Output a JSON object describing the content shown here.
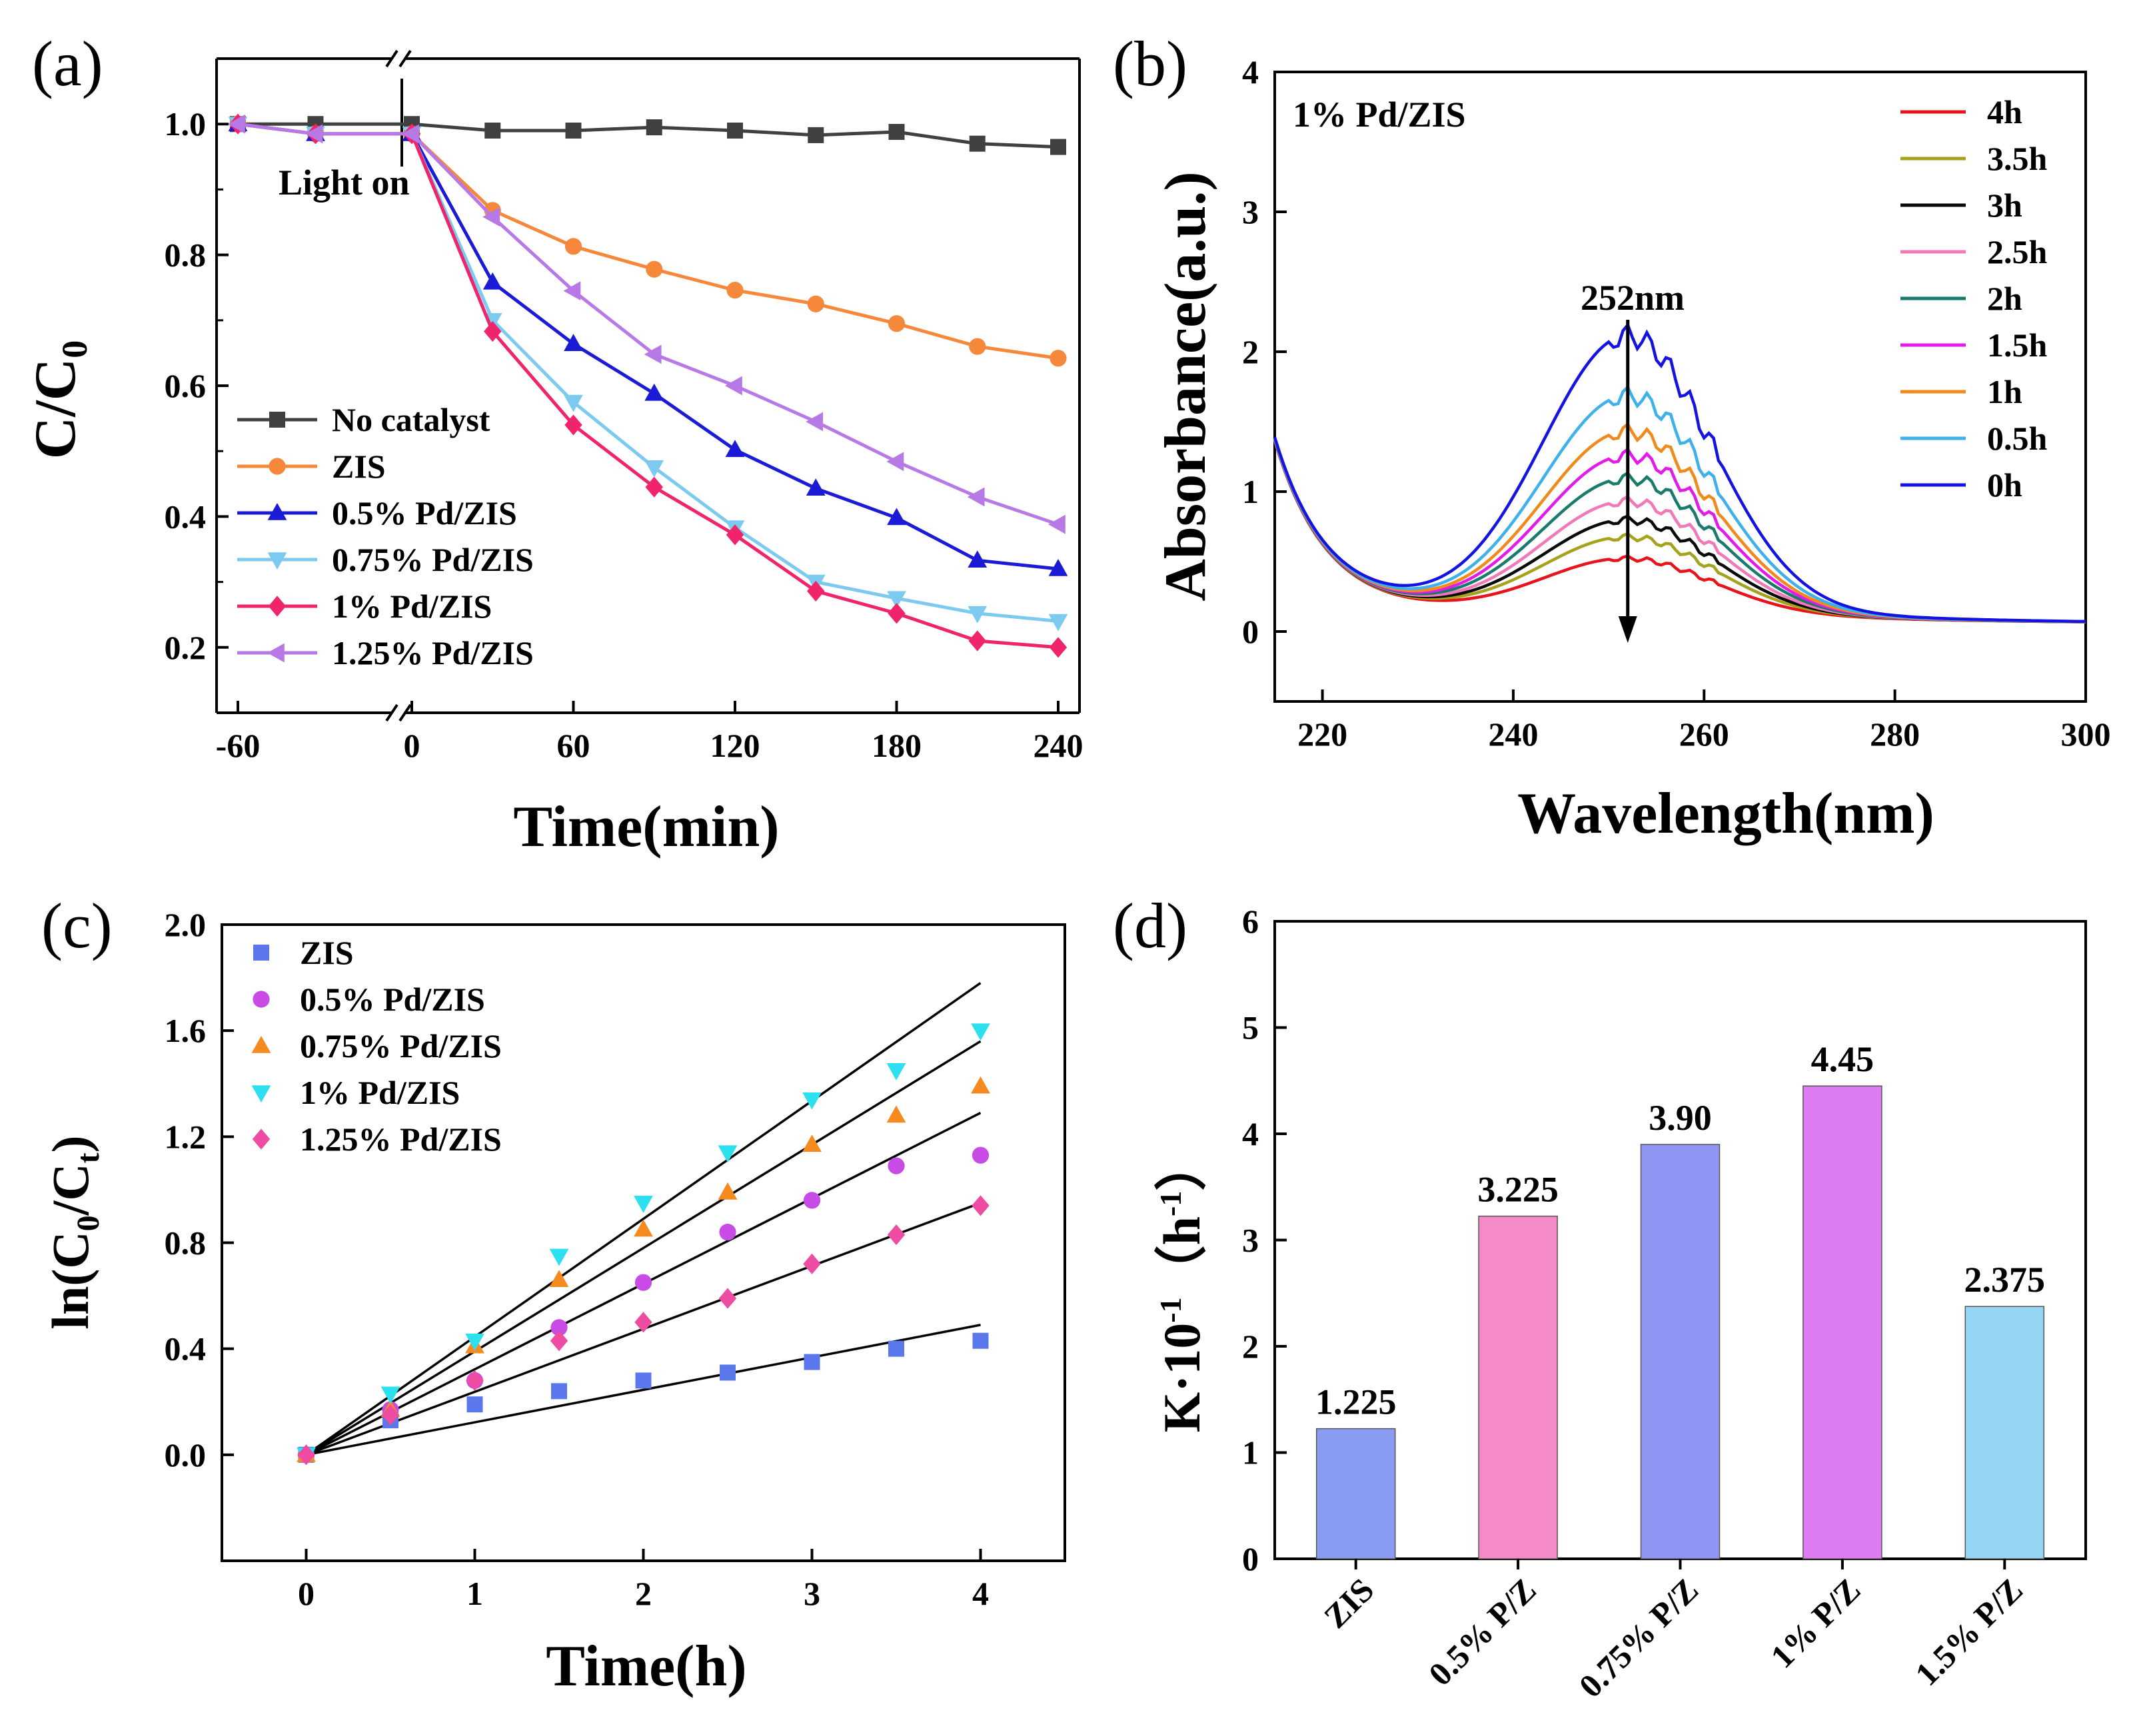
{
  "chart_data": [
    {
      "panel": "(a)",
      "type": "line",
      "xlabel": "Time(min)",
      "ylabel": "C/C₀",
      "ylabel_main": "C/C",
      "ylabel_sub": "0",
      "xlim": [
        -60,
        240
      ],
      "ylim": [
        0.1,
        1.1
      ],
      "xticks": [
        "-60",
        "0",
        "60",
        "120",
        "180",
        "240"
      ],
      "yticks": [
        "0.2",
        "0.4",
        "0.6",
        "0.8",
        "1.0"
      ],
      "annotation": "Light on",
      "legend_position": "lower-left",
      "x": [
        -60,
        -30,
        0,
        30,
        60,
        90,
        120,
        150,
        180,
        210,
        240
      ],
      "series": [
        {
          "name": "No catalyst",
          "color": "#404040",
          "marker": "square",
          "values": [
            1.0,
            1.0,
            1.0,
            0.99,
            0.99,
            0.995,
            0.99,
            0.983,
            0.988,
            0.97,
            0.965
          ]
        },
        {
          "name": "ZIS",
          "color": "#f5883a",
          "marker": "circle",
          "values": [
            1.0,
            0.985,
            0.985,
            0.868,
            0.813,
            0.778,
            0.746,
            0.725,
            0.695,
            0.66,
            0.642
          ]
        },
        {
          "name": "0.5% Pd/ZIS",
          "color": "#1b1bd6",
          "marker": "triangle-up",
          "values": [
            1.0,
            0.985,
            0.985,
            0.758,
            0.664,
            0.588,
            0.502,
            0.443,
            0.398,
            0.333,
            0.32
          ]
        },
        {
          "name": "0.75% Pd/ZIS",
          "color": "#7ccaf0",
          "marker": "triangle-down",
          "values": [
            1.0,
            0.985,
            0.985,
            0.7,
            0.575,
            0.475,
            0.383,
            0.3,
            0.275,
            0.252,
            0.24
          ]
        },
        {
          "name": "1% Pd/ZIS",
          "color": "#f0246a",
          "marker": "diamond",
          "values": [
            1.0,
            0.985,
            0.985,
            0.683,
            0.54,
            0.445,
            0.372,
            0.286,
            0.252,
            0.21,
            0.2
          ]
        },
        {
          "name": "1.25% Pd/ZIS",
          "color": "#b779e6",
          "marker": "triangle-left",
          "values": [
            1.0,
            0.985,
            0.985,
            0.858,
            0.745,
            0.648,
            0.6,
            0.545,
            0.484,
            0.43,
            0.388
          ]
        }
      ]
    },
    {
      "panel": "(b)",
      "type": "line",
      "title": "1% Pd/ZIS",
      "xlabel": "Wavelength(nm)",
      "ylabel": "Absorbance(a.u.)",
      "xlim": [
        215,
        300
      ],
      "ylim": [
        -0.5,
        4
      ],
      "xticks": [
        "220",
        "240",
        "260",
        "280",
        "300"
      ],
      "yticks": [
        "0",
        "1",
        "2",
        "3",
        "4"
      ],
      "annotation": "252nm",
      "peak_nm": 252,
      "legend_position": "top-right",
      "series": [
        {
          "name": "4h",
          "color": "#e8141c",
          "peak": 0.44
        },
        {
          "name": "3.5h",
          "color": "#a5a21c",
          "peak": 0.59
        },
        {
          "name": "3h",
          "color": "#0a0a0a",
          "peak": 0.71
        },
        {
          "name": "2.5h",
          "color": "#f07ab8",
          "peak": 0.84
        },
        {
          "name": "2h",
          "color": "#1a7a6c",
          "peak": 1.0
        },
        {
          "name": "1.5h",
          "color": "#e31ae8",
          "peak": 1.16
        },
        {
          "name": "1h",
          "color": "#f08a1c",
          "peak": 1.33
        },
        {
          "name": "0.5h",
          "color": "#3eb0ea",
          "peak": 1.58
        },
        {
          "name": "0h",
          "color": "#1414e0",
          "peak": 2.0
        }
      ]
    },
    {
      "panel": "(c)",
      "type": "scatter",
      "xlabel": "Time(h)",
      "ylabel": "ln(C₀/Cₜ)",
      "ylabel_parts": [
        "ln(C",
        "0",
        "/C",
        "t",
        ")"
      ],
      "xlim": [
        -0.5,
        4.5
      ],
      "ylim": [
        -0.4,
        2.0
      ],
      "xticks": [
        "0",
        "1",
        "2",
        "3",
        "4"
      ],
      "yticks": [
        "0.0",
        "0.4",
        "0.8",
        "1.2",
        "1.6",
        "2.0"
      ],
      "legend_position": "top-left",
      "x": [
        0,
        0.5,
        1,
        1.5,
        2,
        2.5,
        3,
        3.5,
        4
      ],
      "series": [
        {
          "name": "ZIS",
          "color": "#5a78ec",
          "marker": "square",
          "slope": 0.1225,
          "values": [
            0,
            0.13,
            0.19,
            0.24,
            0.28,
            0.31,
            0.35,
            0.4,
            0.43
          ]
        },
        {
          "name": "0.5% Pd/ZIS",
          "color": "#c84be6",
          "marker": "circle",
          "slope": 0.3225,
          "values": [
            0,
            0.17,
            0.28,
            0.48,
            0.65,
            0.84,
            0.96,
            1.09,
            1.13
          ]
        },
        {
          "name": "0.75% Pd/ZIS",
          "color": "#f58a1e",
          "marker": "triangle-up",
          "slope": 0.39,
          "values": [
            0,
            0.17,
            0.41,
            0.66,
            0.85,
            0.99,
            1.17,
            1.28,
            1.39
          ]
        },
        {
          "name": "1% Pd/ZIS",
          "color": "#2de0ef",
          "marker": "triangle-down",
          "slope": 0.445,
          "values": [
            0,
            0.23,
            0.43,
            0.75,
            0.95,
            1.14,
            1.34,
            1.45,
            1.6
          ]
        },
        {
          "name": "1.25% Pd/ZIS",
          "color": "#ee4ba2",
          "marker": "diamond",
          "slope": 0.2375,
          "values": [
            0,
            0.15,
            0.28,
            0.43,
            0.5,
            0.59,
            0.72,
            0.83,
            0.94
          ]
        }
      ]
    },
    {
      "panel": "(d)",
      "type": "bar",
      "ylabel": "K·10⁻¹（h⁻¹）",
      "ylabel_parts": [
        "K·10",
        "-1",
        "（h",
        "-1",
        "）"
      ],
      "ylim": [
        0,
        6
      ],
      "yticks": [
        "0",
        "1",
        "2",
        "3",
        "4",
        "5",
        "6"
      ],
      "categories": [
        "ZIS",
        "0.5% P/Z",
        "0.75% P/Z",
        "1% P/Z",
        "1.5% P/Z"
      ],
      "values": [
        1.225,
        3.225,
        3.9,
        4.45,
        2.375
      ],
      "value_labels": [
        "1.225",
        "3.225",
        "3.90",
        "4.45",
        "2.375"
      ],
      "colors": [
        "#8a9cf2",
        "#f58ac8",
        "#9094f2",
        "#dc7cf0",
        "#94d6f2"
      ]
    }
  ]
}
